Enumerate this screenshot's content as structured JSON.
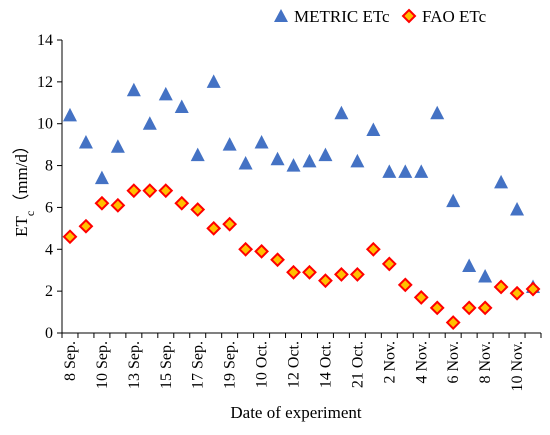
{
  "chart_data": {
    "type": "scatter",
    "title": "",
    "xlabel": "Date of experiment",
    "ylabel": "ET",
    "ylabel_sub": "c",
    "ylabel_unit": "（mm/d）",
    "ylim": [
      0,
      14
    ],
    "yticks": [
      0,
      2,
      4,
      6,
      8,
      10,
      12,
      14
    ],
    "grid": false,
    "legend_position": "top",
    "x_positions": 30,
    "x_tick_labels": [
      "8 Sep.",
      "10 Sep.",
      "13 Sep.",
      "15 Sep.",
      "17 Sep.",
      "19 Sep.",
      "10 Oct.",
      "12 Oct.",
      "14 Oct.",
      "21 Oct.",
      "2 Nov.",
      "4 Nov.",
      "6 Nov.",
      "8 Nov.",
      "10 Nov."
    ],
    "series": [
      {
        "name": "METRIC ETc",
        "marker": "triangle",
        "color": "#4472C4",
        "values": [
          10.4,
          9.1,
          7.4,
          8.9,
          11.6,
          10.0,
          11.4,
          10.8,
          8.5,
          12.0,
          9.0,
          8.1,
          9.1,
          8.3,
          8.0,
          8.2,
          8.5,
          10.5,
          8.2,
          9.7,
          7.7,
          7.7,
          7.7,
          10.5,
          6.3,
          3.2,
          2.7,
          7.2,
          5.9,
          2.2
        ]
      },
      {
        "name": "FAO ETc",
        "marker": "diamond",
        "color": "#FF0000",
        "fill": "#FFC000",
        "values": [
          4.6,
          5.1,
          6.2,
          6.1,
          6.8,
          6.8,
          6.8,
          6.2,
          5.9,
          5.0,
          5.2,
          4.0,
          3.9,
          3.5,
          2.9,
          2.9,
          2.5,
          2.8,
          2.8,
          4.0,
          3.3,
          2.3,
          1.7,
          1.2,
          0.5,
          1.2,
          1.2,
          2.2,
          1.9,
          2.1
        ]
      }
    ]
  }
}
